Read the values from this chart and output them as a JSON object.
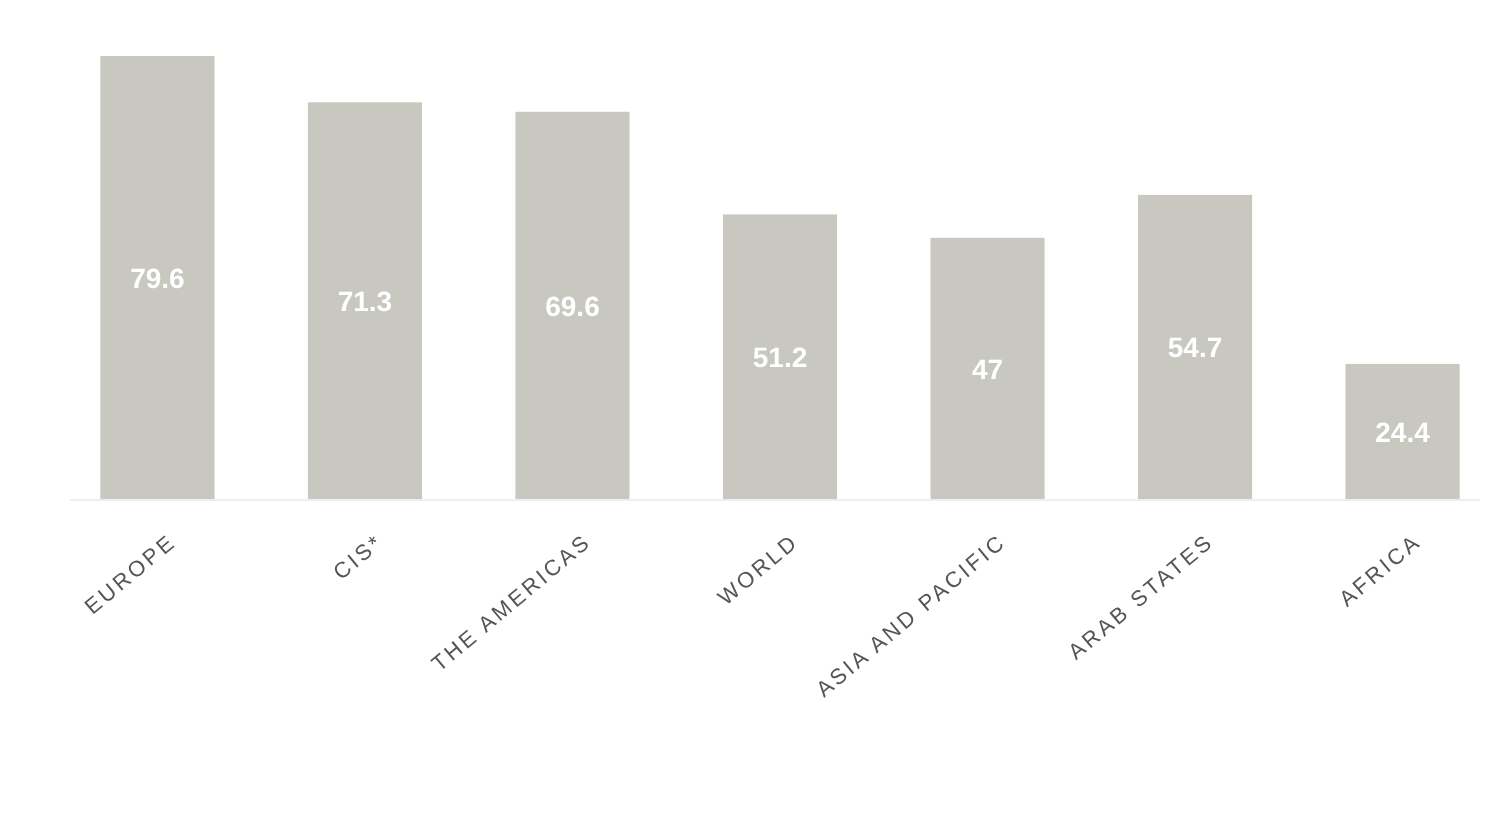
{
  "chart_data": {
    "type": "bar",
    "categories": [
      "EUROPE",
      "CIS*",
      "THE AMERICAS",
      "WORLD",
      "ASIA AND PACIFIC",
      "ARAB STATES",
      "AFRICA"
    ],
    "values": [
      79.6,
      71.3,
      69.6,
      51.2,
      47,
      54.7,
      24.4
    ],
    "color": "#c8c8c0",
    "data_labels": true
  }
}
